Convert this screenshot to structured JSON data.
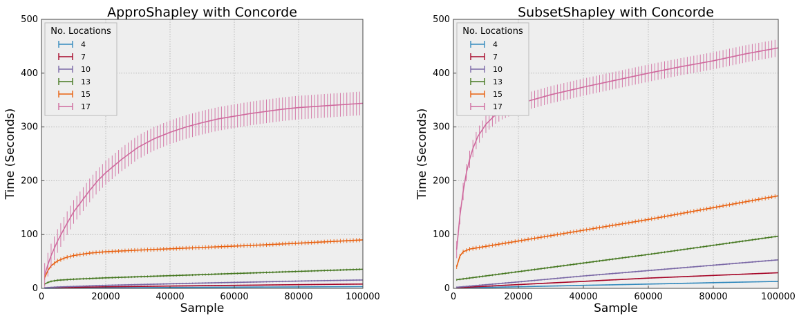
{
  "chart_data": [
    {
      "type": "line",
      "title": "ApproShapley with Concorde",
      "xlabel": "Sample",
      "ylabel": "Time (Seconds)",
      "xlim": [
        0,
        100000
      ],
      "ylim": [
        0,
        500
      ],
      "xticks": [
        "0",
        "20000",
        "40000",
        "60000",
        "80000",
        "100000"
      ],
      "yticks": [
        "0",
        "100",
        "200",
        "300",
        "400",
        "500"
      ],
      "grid": true,
      "error_bars": true,
      "legend": {
        "title": "No. Locations",
        "position": "top-left"
      },
      "series": [
        {
          "name": "4",
          "color": "#348abd",
          "x": [
            1000,
            5000,
            10000,
            20000,
            40000,
            60000,
            80000,
            100000
          ],
          "y": [
            0.1,
            0.3,
            0.5,
            0.9,
            1.6,
            2.2,
            2.7,
            3.2
          ],
          "err": 0.5
        },
        {
          "name": "7",
          "color": "#a60628",
          "x": [
            1000,
            5000,
            10000,
            20000,
            40000,
            60000,
            80000,
            100000
          ],
          "y": [
            0.5,
            1.2,
            1.8,
            2.8,
            4.3,
            5.6,
            6.8,
            8
          ],
          "err": 1
        },
        {
          "name": "10",
          "color": "#7a68a6",
          "x": [
            1000,
            5000,
            10000,
            20000,
            40000,
            60000,
            80000,
            100000
          ],
          "y": [
            1,
            2.5,
            3.5,
            5.5,
            8.5,
            11,
            13.5,
            15.5
          ],
          "err": 1.5
        },
        {
          "name": "13",
          "color": "#467821",
          "x": [
            1000,
            2000,
            3000,
            5000,
            10000,
            20000,
            40000,
            60000,
            80000,
            100000
          ],
          "y": [
            8,
            11,
            13,
            15,
            17,
            19.5,
            23.5,
            27.5,
            31.5,
            35.5
          ],
          "err": 2
        },
        {
          "name": "15",
          "color": "#e8600f",
          "x": [
            1000,
            2000,
            3000,
            5000,
            7500,
            10000,
            15000,
            20000,
            30000,
            40000,
            50000,
            60000,
            70000,
            80000,
            90000,
            100000
          ],
          "y": [
            20,
            33,
            42,
            51,
            57,
            61,
            65.5,
            68,
            71,
            73.5,
            76,
            78.5,
            81,
            84,
            87,
            90
          ],
          "err": 4
        },
        {
          "name": "17",
          "color": "#cf6a9e",
          "x": [
            1000,
            2000,
            3000,
            5000,
            7500,
            10000,
            12500,
            15000,
            17500,
            20000,
            25000,
            30000,
            35000,
            40000,
            45000,
            50000,
            55000,
            60000,
            65000,
            70000,
            75000,
            80000,
            85000,
            90000,
            95000,
            100000
          ],
          "y": [
            25,
            44,
            61,
            88,
            116,
            142,
            162,
            182,
            200,
            215,
            240,
            262,
            278,
            290,
            300,
            308,
            315,
            320,
            325,
            329,
            333,
            336,
            338,
            340,
            342,
            344
          ],
          "err": 22
        }
      ]
    },
    {
      "type": "line",
      "title": "SubsetShapley with Concorde",
      "xlabel": "Sample",
      "ylabel": "Time (Seconds)",
      "xlim": [
        0,
        100000
      ],
      "ylim": [
        0,
        500
      ],
      "xticks": [
        "0",
        "20000",
        "40000",
        "60000",
        "80000",
        "100000"
      ],
      "yticks": [
        "0",
        "100",
        "200",
        "300",
        "400",
        "500"
      ],
      "grid": true,
      "error_bars": true,
      "legend": {
        "title": "No. Locations",
        "position": "top-left"
      },
      "series": [
        {
          "name": "4",
          "color": "#348abd",
          "x": [
            1000,
            20000,
            40000,
            60000,
            80000,
            100000
          ],
          "y": [
            0.5,
            3,
            5.5,
            8,
            10.5,
            13
          ],
          "err": 1
        },
        {
          "name": "7",
          "color": "#a60628",
          "x": [
            1000,
            20000,
            40000,
            60000,
            80000,
            100000
          ],
          "y": [
            1,
            7,
            13,
            19,
            24,
            29
          ],
          "err": 1
        },
        {
          "name": "10",
          "color": "#7a68a6",
          "x": [
            1000,
            20000,
            40000,
            60000,
            80000,
            100000
          ],
          "y": [
            2,
            12,
            23,
            33,
            43,
            53
          ],
          "err": 1.5
        },
        {
          "name": "13",
          "color": "#467821",
          "x": [
            1000,
            20000,
            40000,
            60000,
            80000,
            100000
          ],
          "y": [
            16,
            31,
            47,
            63,
            80,
            97
          ],
          "err": 2
        },
        {
          "name": "15",
          "color": "#e8600f",
          "x": [
            1000,
            2000,
            3000,
            5000,
            10000,
            20000,
            40000,
            60000,
            80000,
            100000
          ],
          "y": [
            40,
            60,
            68,
            73,
            78,
            88,
            108,
            128,
            150,
            172
          ],
          "err": 4
        },
        {
          "name": "17",
          "color": "#cf6a9e",
          "x": [
            1000,
            2000,
            3000,
            4000,
            5000,
            6000,
            7500,
            10000,
            12500,
            15000,
            20000,
            30000,
            40000,
            50000,
            60000,
            70000,
            80000,
            90000,
            100000
          ],
          "y": [
            72,
            135,
            180,
            215,
            240,
            260,
            282,
            305,
            320,
            330,
            343,
            360,
            374,
            387,
            400,
            412,
            423,
            436,
            447
          ],
          "err": 16
        }
      ]
    }
  ]
}
